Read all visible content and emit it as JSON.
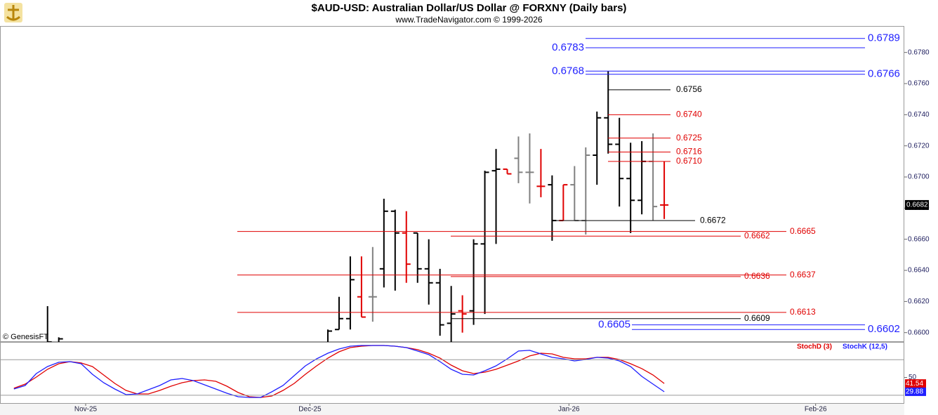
{
  "chart_data": [
    {
      "type": "ohlc",
      "title": "$AUD-USD:  Australian Dollar/US Dollar @ FORXNY  (Daily bars)",
      "subtitle": "www.TradeNavigator.com © 1999-2026",
      "watermark": "© GenesisFT",
      "x": [
        4,
        5,
        29,
        30,
        31,
        32,
        33,
        34,
        35,
        36,
        37,
        38,
        39,
        40,
        41,
        42,
        43,
        44,
        45,
        46,
        47,
        48,
        49,
        50,
        51,
        52,
        53,
        54,
        55,
        56,
        57,
        58,
        59
      ],
      "open": [
        0.6592,
        0.659,
        0.6592,
        0.6602,
        0.6609,
        0.6623,
        0.6623,
        0.6641,
        0.6678,
        0.6664,
        0.6664,
        0.6641,
        0.6632,
        0.6606,
        0.6614,
        0.6614,
        0.6657,
        0.6704,
        0.6705,
        0.6712,
        0.6703,
        0.6694,
        0.6695,
        0.6672,
        0.6695,
        0.6672,
        0.6714,
        0.6738,
        0.6721,
        0.6699,
        0.6685,
        0.671,
        0.6682
      ],
      "high": [
        0.6617,
        0.6597,
        0.6602,
        0.6623,
        0.6649,
        0.6649,
        0.6655,
        0.6686,
        0.6679,
        0.6678,
        0.6664,
        0.666,
        0.6641,
        0.663,
        0.6624,
        0.666,
        0.6704,
        0.6718,
        0.6705,
        0.6726,
        0.6728,
        0.6718,
        0.6701,
        0.6695,
        0.6707,
        0.6719,
        0.6742,
        0.6768,
        0.6738,
        0.6722,
        0.6723,
        0.6728,
        0.671
      ],
      "low": [
        0.6588,
        0.6585,
        0.659,
        0.6602,
        0.6602,
        0.661,
        0.6607,
        0.6629,
        0.6627,
        0.6632,
        0.6632,
        0.6618,
        0.6598,
        0.659,
        0.66,
        0.6605,
        0.6612,
        0.6657,
        0.6702,
        0.6696,
        0.6683,
        0.6687,
        0.6659,
        0.6672,
        0.6672,
        0.6663,
        0.6695,
        0.6715,
        0.6681,
        0.6664,
        0.6676,
        0.6672,
        0.6673
      ],
      "close": [
        0.6594,
        0.6596,
        0.6601,
        0.6609,
        0.6634,
        0.661,
        0.6623,
        0.6678,
        0.6664,
        0.6644,
        0.6641,
        0.6632,
        0.6605,
        0.6612,
        0.6612,
        0.6657,
        0.6703,
        0.6705,
        0.6702,
        0.6703,
        0.6703,
        0.6694,
        0.6672,
        0.6695,
        0.6672,
        0.6714,
        0.6738,
        0.6721,
        0.6699,
        0.6685,
        0.671,
        0.6681,
        0.6682
      ],
      "colors": [
        "#000000",
        "#000000",
        "#000000",
        "#000000",
        "#000000",
        "#e00000",
        "#808080",
        "#000000",
        "#000000",
        "#e00000",
        "#000000",
        "#000000",
        "#000000",
        "#000000",
        "#e00000",
        "#000000",
        "#000000",
        "#000000",
        "#e00000",
        "#808080",
        "#808080",
        "#e00000",
        "#000000",
        "#e00000",
        "#808080",
        "#808080",
        "#000000",
        "#000000",
        "#000000",
        "#000000",
        "#000000",
        "#808080",
        "#e00000"
      ],
      "xlim": [
        -0.24,
        80.41
      ],
      "xticks": [
        {
          "value": 7.4,
          "label": "Nov-25"
        },
        {
          "value": 27.4,
          "label": "Dec-25"
        },
        {
          "value": 50.5,
          "label": "Jan-26"
        },
        {
          "value": 72.5,
          "label": "Feb-26"
        }
      ],
      "ylim": [
        0.6594,
        0.6797
      ],
      "yticks": [
        {
          "value": 0.66,
          "label": "0.6600"
        },
        {
          "value": 0.662,
          "label": "0.6620"
        },
        {
          "value": 0.664,
          "label": "0.6640"
        },
        {
          "value": 0.666,
          "label": "0.6660"
        },
        {
          "value": 0.668,
          "label": "0.6680"
        },
        {
          "value": 0.67,
          "label": "0.6700"
        },
        {
          "value": 0.672,
          "label": "0.6720"
        },
        {
          "value": 0.674,
          "label": "0.6740"
        },
        {
          "value": 0.676,
          "label": "0.6760"
        },
        {
          "value": 0.678,
          "label": "0.6780"
        }
      ],
      "last": 0.6682,
      "levels": [
        {
          "value": 0.6789,
          "color": "#1f1fff"
        },
        {
          "value": 0.6783,
          "color": "#1f1fff"
        },
        {
          "value": 0.6768,
          "color": "#1f1fff"
        },
        {
          "value": 0.6766,
          "color": "#1f1fff"
        },
        {
          "value": 0.6756,
          "color": "#000000"
        },
        {
          "value": 0.674,
          "label": "0.6740",
          "color": "#e00000"
        },
        {
          "value": 0.6725,
          "color": "#e00000"
        },
        {
          "value": 0.6716,
          "color": "#e00000"
        },
        {
          "value": 0.671,
          "label": "0.6710",
          "color": "#e00000"
        },
        {
          "value": 0.6672,
          "color": "#000000"
        },
        {
          "value": 0.6665,
          "color": "#e00000"
        },
        {
          "value": 0.6662,
          "color": "#e00000"
        },
        {
          "value": 0.6637,
          "color": "#e00000"
        },
        {
          "value": 0.6636,
          "color": "#e00000"
        },
        {
          "value": 0.6613,
          "color": "#e00000"
        },
        {
          "value": 0.6609,
          "color": "#000000"
        },
        {
          "value": 0.6605,
          "color": "#1f1fff"
        },
        {
          "value": 0.6602,
          "color": "#1f1fff"
        }
      ]
    },
    {
      "type": "line",
      "x": [
        1,
        2,
        3,
        4,
        5,
        6,
        7,
        8,
        9,
        10,
        11,
        12,
        13,
        14,
        15,
        16,
        17,
        18,
        19,
        20,
        21,
        22,
        23,
        24,
        25,
        26,
        27,
        28,
        29,
        30,
        31,
        32,
        33,
        34,
        35,
        36,
        37,
        38,
        39,
        40,
        41,
        42,
        43,
        44,
        45,
        46,
        47,
        48,
        49,
        50,
        51,
        52,
        53,
        54,
        55,
        56,
        57,
        58,
        59
      ],
      "series": [
        {
          "name": "StochD (3)",
          "color": "#e00000",
          "values": [
            34.8,
            40.7,
            50.6,
            61.5,
            69.4,
            72.3,
            70.4,
            65.4,
            53.5,
            41.7,
            31.8,
            26.8,
            26.8,
            31.8,
            37.7,
            42.7,
            45.6,
            46.6,
            44.6,
            37.7,
            28.8,
            22.9,
            21.9,
            23.9,
            31.8,
            41.7,
            54.5,
            66.4,
            77.3,
            86.2,
            92.1,
            94.1,
            95.1,
            95.1,
            94.1,
            92.1,
            89.2,
            84.2,
            77.3,
            67.4,
            59.5,
            55.5,
            57.5,
            61.5,
            67.4,
            73.3,
            80.3,
            84.2,
            83.2,
            78.3,
            76.3,
            76.3,
            78.3,
            78.3,
            75.3,
            69.4,
            62.5,
            53.5,
            41.54
          ]
        },
        {
          "name": "StochK (12,5)",
          "color": "#1f1fff",
          "values": [
            33.8,
            38.7,
            55.5,
            65.4,
            71.4,
            72.3,
            69.4,
            54.5,
            42.7,
            33.8,
            25.9,
            26.8,
            32.8,
            38.7,
            46.6,
            48.6,
            45.6,
            39.7,
            33.8,
            27.8,
            22.9,
            21.9,
            21.9,
            29.8,
            38.7,
            52.6,
            66.4,
            76.3,
            84.2,
            90.1,
            94.1,
            95.1,
            95.1,
            95.1,
            94.1,
            92.1,
            87.2,
            82.2,
            72.3,
            61.5,
            54.5,
            53.5,
            59.5,
            66.4,
            76.3,
            87.2,
            88.2,
            83.2,
            78.3,
            76.3,
            73.3,
            75.3,
            78.3,
            77.3,
            73.3,
            65.4,
            51.6,
            40.7,
            29.88
          ]
        }
      ],
      "xlim": [
        -0.24,
        80.41
      ],
      "ylim": [
        13,
        100
      ],
      "yticks": [
        50
      ],
      "hlines": [
        25,
        75
      ]
    }
  ]
}
